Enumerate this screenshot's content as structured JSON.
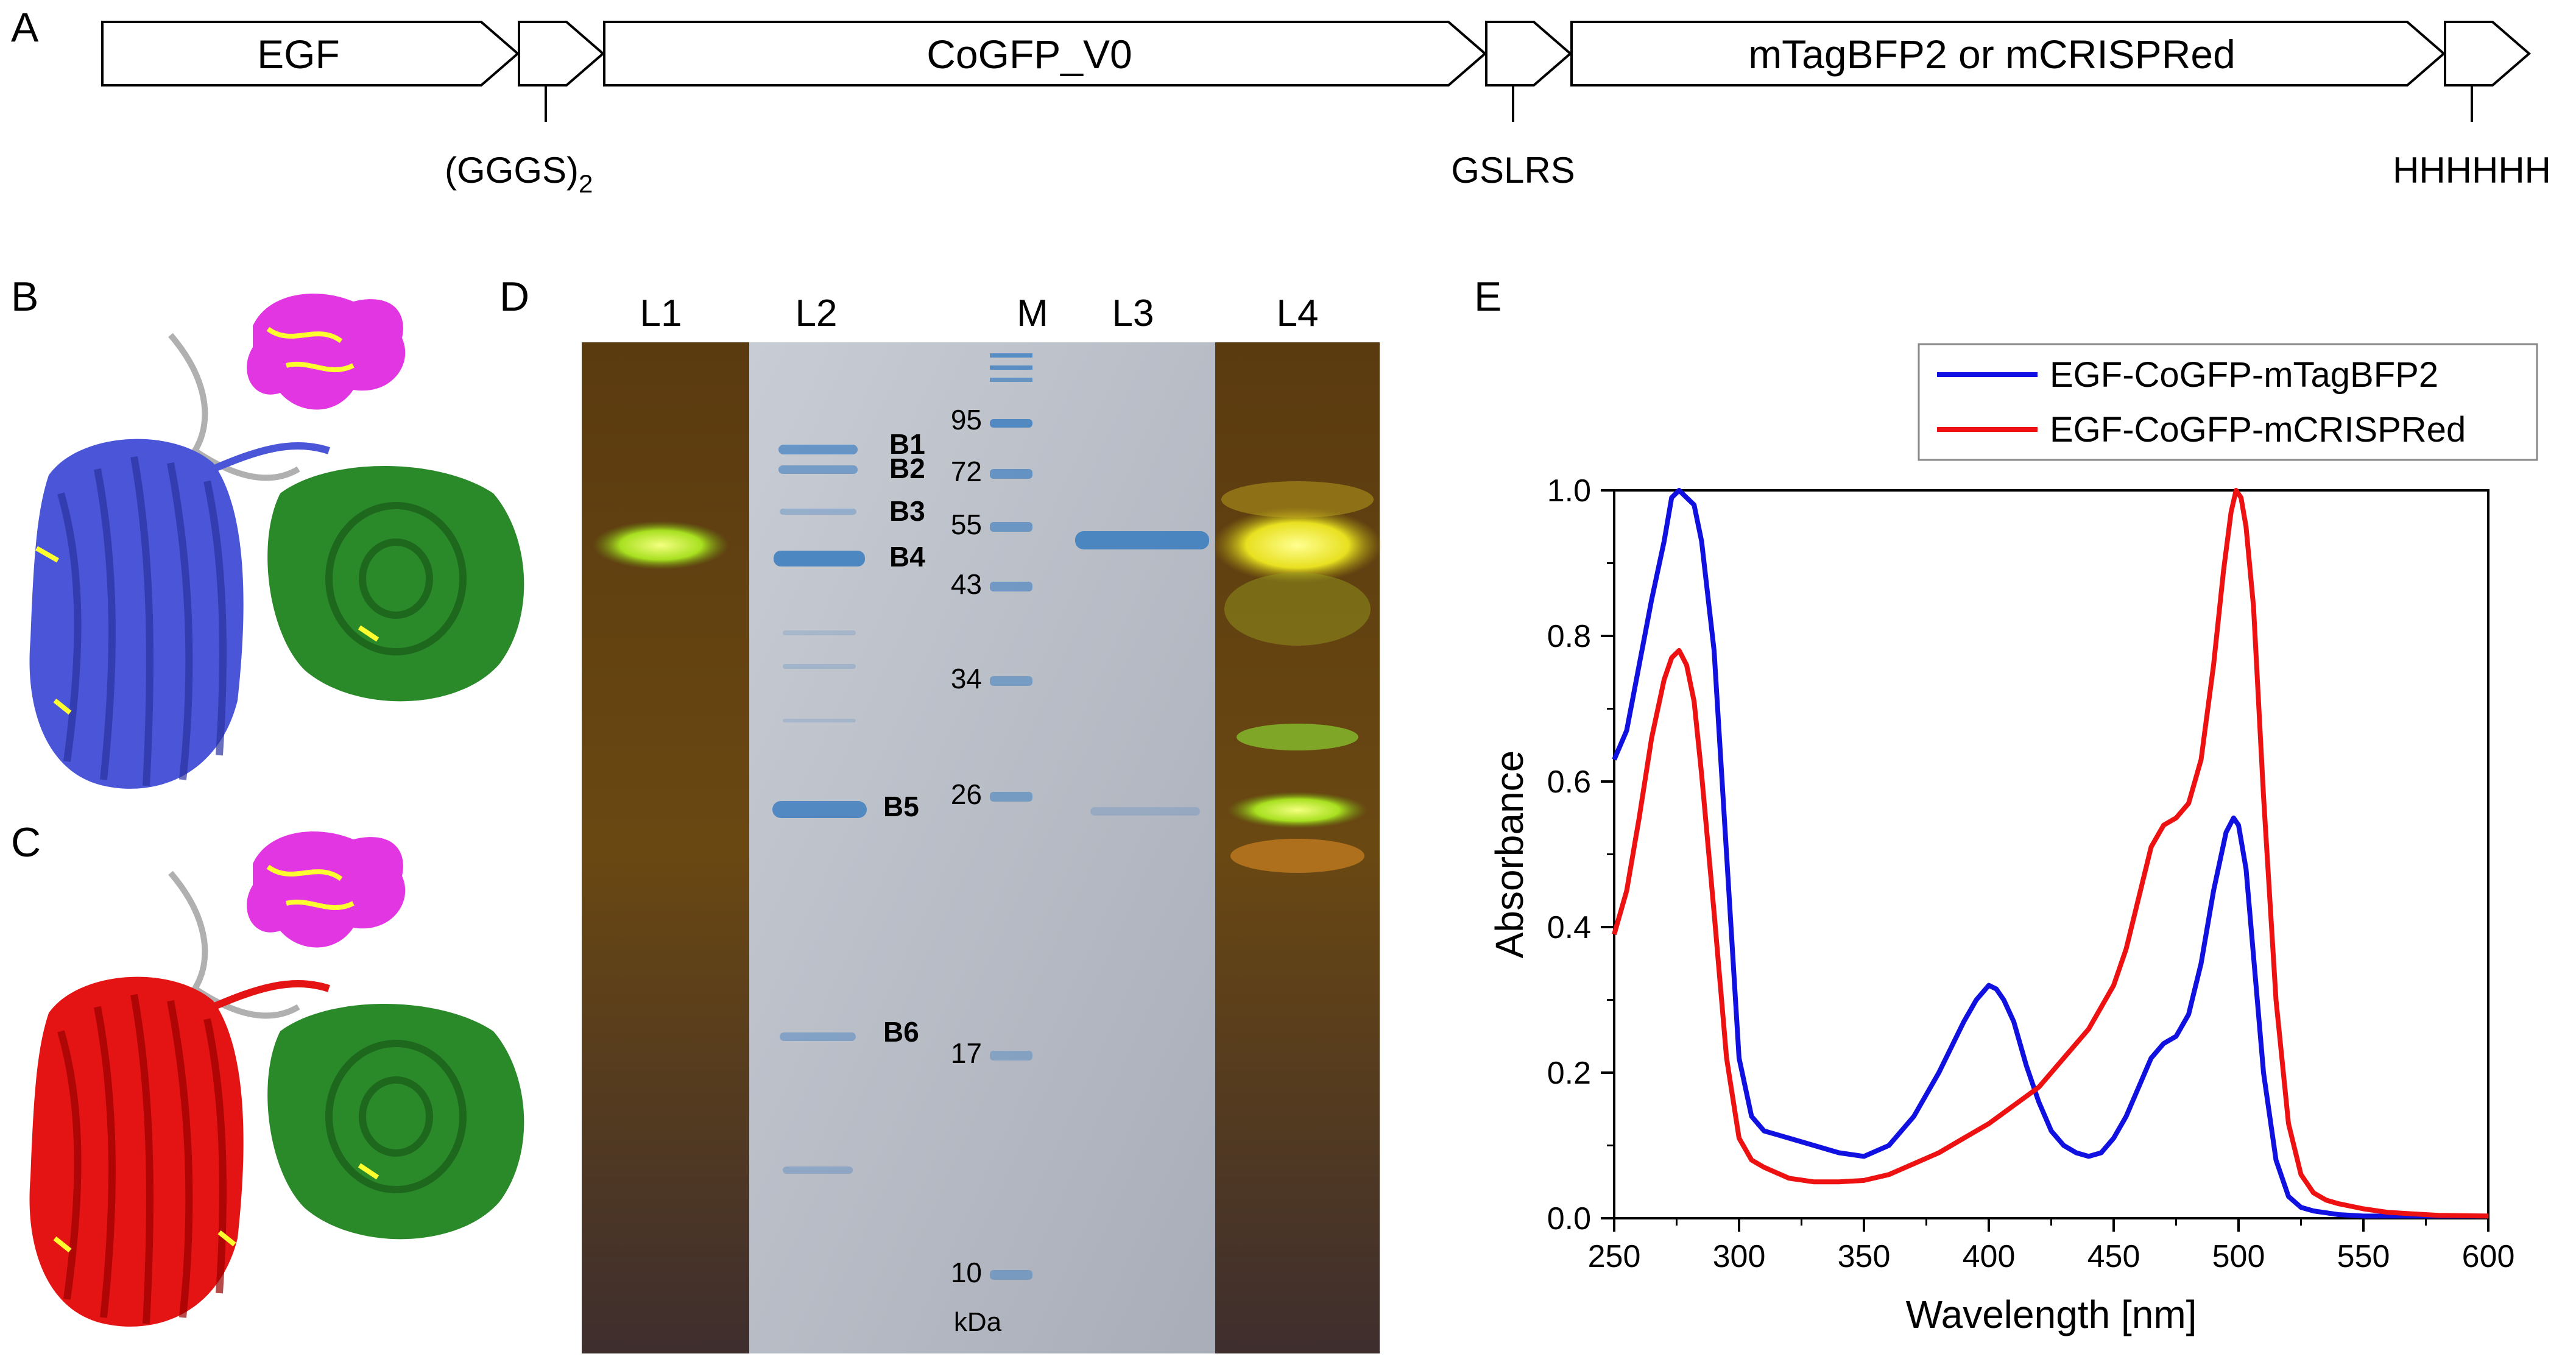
{
  "panels": {
    "a": "A",
    "b": "B",
    "c": "C",
    "d": "D",
    "e": "E"
  },
  "construct": {
    "segments": [
      {
        "label": "EGF"
      },
      {
        "label": ""
      },
      {
        "label": "CoGFP_V0"
      },
      {
        "label": ""
      },
      {
        "label": "mTagBFP2 or mCRISPRed"
      },
      {
        "label": ""
      }
    ],
    "linkers": [
      {
        "label": "(GGGS)",
        "sub": "2"
      },
      {
        "label": "GSLRS"
      },
      {
        "label": "HHHHHH"
      }
    ]
  },
  "gel": {
    "lanes": [
      "L1",
      "L2",
      "M",
      "L3",
      "L4"
    ],
    "bands": [
      "B1",
      "B2",
      "B3",
      "B4",
      "B5",
      "B6"
    ],
    "markers": [
      "95",
      "72",
      "55",
      "43",
      "34",
      "26",
      "17",
      "10"
    ],
    "unit": "kDa"
  },
  "colors": {
    "blue": "#1010e0",
    "red": "#ee1111",
    "structure_blue": "#4a55d8",
    "structure_red": "#e41414",
    "structure_green": "#2a8a2a",
    "structure_magenta": "#e020e0"
  },
  "chart_data": {
    "type": "line",
    "xlabel": "Wavelength [nm]",
    "ylabel": "Absorbance",
    "xlim": [
      250,
      600
    ],
    "ylim": [
      0,
      1.0
    ],
    "xticks": [
      "250",
      "300",
      "350",
      "400",
      "450",
      "500",
      "550",
      "600"
    ],
    "yticks": [
      "0.0",
      "0.2",
      "0.4",
      "0.6",
      "0.8",
      "1.0"
    ],
    "legend": "top-right",
    "series": [
      {
        "name": "EGF-CoGFP-mTagBFP2",
        "color": "#1010e0",
        "x": [
          250,
          255,
          260,
          265,
          270,
          273,
          276,
          279,
          282,
          285,
          290,
          295,
          300,
          305,
          310,
          320,
          330,
          340,
          350,
          360,
          370,
          380,
          390,
          395,
          400,
          403,
          406,
          410,
          415,
          420,
          425,
          430,
          435,
          440,
          445,
          450,
          455,
          460,
          465,
          470,
          475,
          480,
          485,
          490,
          495,
          498,
          500,
          503,
          506,
          510,
          515,
          520,
          525,
          530,
          540,
          550,
          560,
          580,
          600
        ],
        "y": [
          0.63,
          0.67,
          0.76,
          0.85,
          0.93,
          0.99,
          1.0,
          0.99,
          0.98,
          0.93,
          0.78,
          0.5,
          0.22,
          0.14,
          0.12,
          0.11,
          0.1,
          0.09,
          0.085,
          0.1,
          0.14,
          0.2,
          0.27,
          0.3,
          0.32,
          0.315,
          0.3,
          0.27,
          0.21,
          0.16,
          0.12,
          0.1,
          0.09,
          0.085,
          0.09,
          0.11,
          0.14,
          0.18,
          0.22,
          0.24,
          0.25,
          0.28,
          0.35,
          0.45,
          0.53,
          0.55,
          0.54,
          0.48,
          0.36,
          0.2,
          0.08,
          0.03,
          0.015,
          0.01,
          0.005,
          0.003,
          0.003,
          0.003,
          0.003
        ]
      },
      {
        "name": "EGF-CoGFP-mCRISPRed",
        "color": "#ee1111",
        "x": [
          250,
          255,
          260,
          265,
          270,
          273,
          276,
          279,
          282,
          285,
          290,
          295,
          300,
          305,
          310,
          320,
          330,
          340,
          350,
          360,
          370,
          380,
          390,
          400,
          410,
          420,
          430,
          440,
          450,
          455,
          460,
          465,
          470,
          475,
          480,
          485,
          490,
          494,
          497,
          499,
          501,
          503,
          506,
          510,
          515,
          520,
          525,
          530,
          535,
          540,
          550,
          560,
          580,
          600
        ],
        "y": [
          0.39,
          0.45,
          0.55,
          0.66,
          0.74,
          0.77,
          0.78,
          0.76,
          0.71,
          0.61,
          0.42,
          0.22,
          0.11,
          0.08,
          0.07,
          0.055,
          0.05,
          0.05,
          0.052,
          0.06,
          0.075,
          0.09,
          0.11,
          0.13,
          0.155,
          0.18,
          0.22,
          0.26,
          0.32,
          0.37,
          0.44,
          0.51,
          0.54,
          0.55,
          0.57,
          0.63,
          0.76,
          0.89,
          0.97,
          1.0,
          0.99,
          0.95,
          0.84,
          0.58,
          0.3,
          0.13,
          0.06,
          0.035,
          0.025,
          0.02,
          0.013,
          0.008,
          0.004,
          0.003
        ]
      }
    ]
  }
}
